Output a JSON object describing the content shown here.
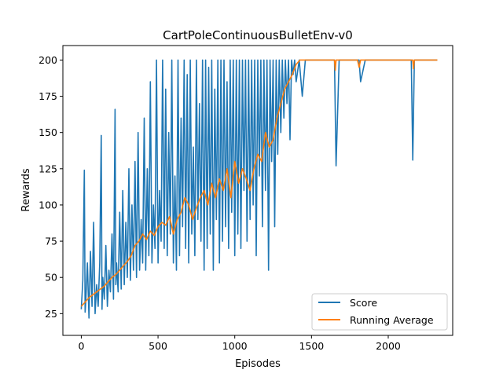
{
  "chart_data": {
    "type": "line",
    "title": "CartPoleContinuousBulletEnv-v0",
    "xlabel": "Episodes",
    "ylabel": "Rewards",
    "xlim": [
      -120,
      2420
    ],
    "ylim": [
      10,
      210
    ],
    "xticks": [
      0,
      500,
      1000,
      1500,
      2000
    ],
    "yticks": [
      25,
      50,
      75,
      100,
      125,
      150,
      175,
      200
    ],
    "grid": false,
    "legend_position": "bottom-right",
    "series": [
      {
        "name": "Score",
        "color": "#1f77b4",
        "x": [
          0,
          10,
          20,
          25,
          30,
          40,
          50,
          60,
          70,
          80,
          90,
          100,
          110,
          120,
          130,
          135,
          140,
          150,
          160,
          170,
          180,
          190,
          200,
          210,
          220,
          225,
          230,
          240,
          250,
          260,
          270,
          280,
          290,
          300,
          310,
          320,
          330,
          340,
          350,
          360,
          370,
          380,
          390,
          400,
          410,
          420,
          430,
          440,
          450,
          460,
          470,
          480,
          490,
          500,
          510,
          520,
          530,
          540,
          550,
          560,
          570,
          580,
          590,
          600,
          610,
          620,
          630,
          640,
          650,
          660,
          670,
          680,
          690,
          700,
          710,
          720,
          730,
          740,
          750,
          760,
          770,
          780,
          790,
          800,
          810,
          820,
          830,
          840,
          850,
          860,
          870,
          880,
          890,
          900,
          910,
          920,
          930,
          940,
          950,
          960,
          970,
          980,
          990,
          1000,
          1010,
          1020,
          1030,
          1040,
          1050,
          1060,
          1070,
          1080,
          1090,
          1100,
          1110,
          1120,
          1130,
          1140,
          1150,
          1160,
          1170,
          1180,
          1190,
          1200,
          1210,
          1220,
          1230,
          1240,
          1250,
          1260,
          1270,
          1280,
          1290,
          1300,
          1310,
          1320,
          1330,
          1340,
          1350,
          1360,
          1370,
          1380,
          1390,
          1400,
          1420,
          1440,
          1460,
          1480,
          1500,
          1520,
          1550,
          1580,
          1610,
          1640,
          1650,
          1660,
          1680,
          1720,
          1760,
          1800,
          1810,
          1820,
          1850,
          1900,
          1950,
          2000,
          2050,
          2100,
          2150,
          2160,
          2170,
          2200,
          2250,
          2320
        ],
        "values": [
          28,
          48,
          124,
          26,
          35,
          60,
          22,
          68,
          30,
          88,
          25,
          45,
          30,
          60,
          148,
          28,
          50,
          35,
          72,
          30,
          55,
          40,
          80,
          35,
          166,
          45,
          60,
          40,
          95,
          42,
          110,
          45,
          88,
          50,
          125,
          48,
          100,
          55,
          130,
          50,
          150,
          55,
          90,
          60,
          160,
          55,
          125,
          65,
          185,
          60,
          100,
          70,
          200,
          60,
          110,
          75,
          200,
          70,
          180,
          65,
          150,
          80,
          200,
          60,
          120,
          55,
          200,
          65,
          160,
          85,
          200,
          70,
          190,
          60,
          200,
          80,
          140,
          65,
          200,
          90,
          170,
          75,
          200,
          55,
          200,
          70,
          195,
          80,
          200,
          55,
          180,
          90,
          200,
          60,
          200,
          75,
          200,
          85,
          185,
          70,
          200,
          95,
          200,
          65,
          200,
          80,
          200,
          70,
          200,
          110,
          200,
          75,
          200,
          90,
          200,
          100,
          200,
          65,
          200,
          120,
          200,
          85,
          200,
          110,
          200,
          55,
          200,
          130,
          200,
          85,
          200,
          135,
          200,
          150,
          200,
          160,
          200,
          170,
          200,
          145,
          200,
          190,
          200,
          185,
          200,
          175,
          200,
          200,
          200,
          200,
          200,
          200,
          200,
          200,
          200,
          127,
          200,
          200,
          200,
          200,
          200,
          185,
          200,
          200,
          200,
          200,
          200,
          200,
          200,
          131,
          200,
          200,
          200,
          200
        ]
      },
      {
        "name": "Running Average",
        "color": "#ff7f0e",
        "x": [
          0,
          25,
          50,
          75,
          100,
          125,
          150,
          175,
          200,
          225,
          250,
          275,
          300,
          325,
          350,
          375,
          400,
          425,
          450,
          475,
          500,
          525,
          550,
          575,
          600,
          625,
          650,
          675,
          700,
          725,
          750,
          775,
          800,
          825,
          850,
          875,
          900,
          925,
          950,
          975,
          1000,
          1025,
          1050,
          1075,
          1100,
          1125,
          1150,
          1175,
          1200,
          1225,
          1250,
          1275,
          1300,
          1325,
          1350,
          1375,
          1400,
          1425,
          1450,
          1500,
          1550,
          1600,
          1650,
          1655,
          1660,
          1700,
          1800,
          1810,
          1820,
          1900,
          2000,
          2100,
          2160,
          2165,
          2170,
          2250,
          2320
        ],
        "values": [
          30,
          33,
          36,
          38,
          40,
          42,
          44,
          47,
          50,
          52,
          55,
          58,
          61,
          65,
          72,
          75,
          80,
          76,
          82,
          79,
          85,
          88,
          86,
          92,
          80,
          90,
          95,
          105,
          100,
          90,
          98,
          105,
          110,
          100,
          115,
          105,
          118,
          110,
          125,
          105,
          130,
          115,
          125,
          118,
          110,
          125,
          135,
          130,
          150,
          140,
          145,
          160,
          170,
          180,
          185,
          190,
          197,
          200,
          200,
          200,
          200,
          200,
          200,
          193,
          200,
          200,
          200,
          195,
          200,
          200,
          200,
          200,
          200,
          194,
          200,
          200,
          200
        ]
      }
    ]
  }
}
